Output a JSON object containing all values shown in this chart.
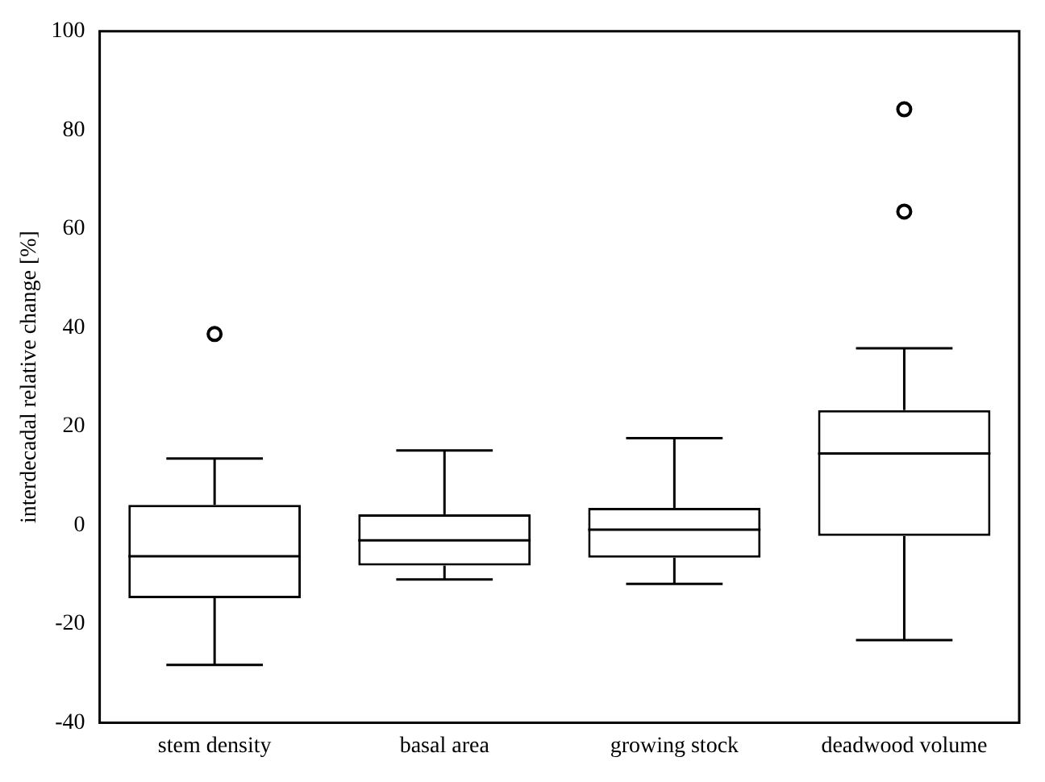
{
  "chart_data": {
    "type": "box",
    "ylabel": "interdecadal relative change [%]",
    "categories": [
      "stem density",
      "basal area",
      "growing stock",
      "deadwood volume"
    ],
    "boxes": [
      {
        "low": -28.3,
        "q1": -14.8,
        "median": -6.3,
        "q3": 4.1,
        "high": 13.5,
        "outliers": [
          38.7
        ]
      },
      {
        "low": -11,
        "q1": -8.2,
        "median": -3.1,
        "q3": 2.2,
        "high": 15.1
      },
      {
        "low": -11.9,
        "q1": -6.6,
        "median": -0.9,
        "q3": 3.5,
        "high": 17.6
      },
      {
        "low": -23.3,
        "q1": -2.2,
        "median": 14.5,
        "q3": 23.3,
        "high": 35.8,
        "outliers": [
          63.5,
          84.2
        ]
      }
    ],
    "color": "#000000",
    "ylim": [
      -40,
      100
    ],
    "yticks": [
      -40,
      -20,
      0,
      20,
      40,
      60,
      80,
      100
    ],
    "grid": false,
    "legend": false
  }
}
